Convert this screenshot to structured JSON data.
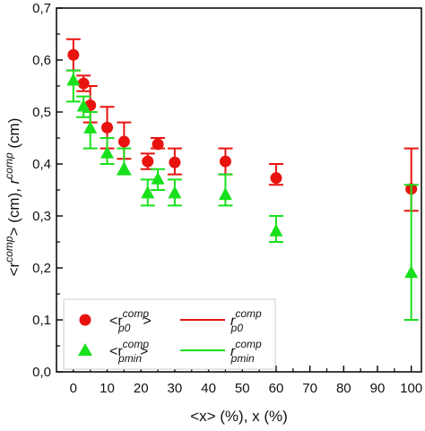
{
  "chart_data": {
    "type": "scatter",
    "xlabel": "<x> (%), x (%)",
    "ylabel": "<r^comp> (cm), r^comp (cm)",
    "xlim": [
      -5,
      103
    ],
    "ylim": [
      0,
      0.7
    ],
    "x_ticks": [
      "0",
      "10",
      "20",
      "30",
      "40",
      "50",
      "60",
      "70",
      "80",
      "90",
      "100"
    ],
    "y_ticks": [
      "0,0",
      "0,1",
      "0,2",
      "0,3",
      "0,4",
      "0,5",
      "0,6",
      "0,7"
    ],
    "grid": false,
    "legend_position": "bottom-left",
    "series": [
      {
        "legend_base": "<r",
        "legend_sup": "comp",
        "legend_sub": "p0",
        "legend_close": ">",
        "line_base": "r",
        "line_sup": "comp",
        "line_sub": "p0",
        "marker": "circle",
        "color": "#e8130f",
        "points": [
          {
            "x": 0,
            "y": 0.61,
            "lo": 0.58,
            "hi": 0.64
          },
          {
            "x": 3,
            "y": 0.555,
            "lo": 0.54,
            "hi": 0.57
          },
          {
            "x": 5,
            "y": 0.513,
            "lo": 0.48,
            "hi": 0.55
          },
          {
            "x": 10,
            "y": 0.47,
            "lo": 0.43,
            "hi": 0.51
          },
          {
            "x": 15,
            "y": 0.443,
            "lo": 0.41,
            "hi": 0.48
          },
          {
            "x": 22,
            "y": 0.405,
            "lo": 0.39,
            "hi": 0.42
          },
          {
            "x": 25,
            "y": 0.438,
            "lo": 0.43,
            "hi": 0.45
          },
          {
            "x": 30,
            "y": 0.403,
            "lo": 0.38,
            "hi": 0.43
          },
          {
            "x": 45,
            "y": 0.405,
            "lo": 0.38,
            "hi": 0.43
          },
          {
            "x": 60,
            "y": 0.373,
            "lo": 0.36,
            "hi": 0.4
          },
          {
            "x": 100,
            "y": 0.352,
            "lo": 0.31,
            "hi": 0.43
          }
        ]
      },
      {
        "legend_base": "<r",
        "legend_sup": "comp",
        "legend_sub": "pmin",
        "legend_close": ">",
        "line_base": "r",
        "line_sup": "comp",
        "line_sub": "pmin",
        "marker": "triangle",
        "color": "#19e01c",
        "points": [
          {
            "x": 0,
            "y": 0.56,
            "lo": 0.52,
            "hi": 0.58
          },
          {
            "x": 3,
            "y": 0.51,
            "lo": 0.49,
            "hi": 0.53
          },
          {
            "x": 5,
            "y": 0.468,
            "lo": 0.43,
            "hi": 0.5
          },
          {
            "x": 10,
            "y": 0.42,
            "lo": 0.4,
            "hi": 0.45
          },
          {
            "x": 15,
            "y": 0.39,
            "lo": 0.38,
            "hi": 0.43
          },
          {
            "x": 22,
            "y": 0.343,
            "lo": 0.32,
            "hi": 0.37
          },
          {
            "x": 25,
            "y": 0.37,
            "lo": 0.35,
            "hi": 0.39
          },
          {
            "x": 30,
            "y": 0.343,
            "lo": 0.32,
            "hi": 0.37
          },
          {
            "x": 45,
            "y": 0.34,
            "lo": 0.32,
            "hi": 0.38
          },
          {
            "x": 60,
            "y": 0.27,
            "lo": 0.25,
            "hi": 0.3
          },
          {
            "x": 100,
            "y": 0.19,
            "lo": 0.1,
            "hi": 0.36
          }
        ]
      }
    ]
  }
}
